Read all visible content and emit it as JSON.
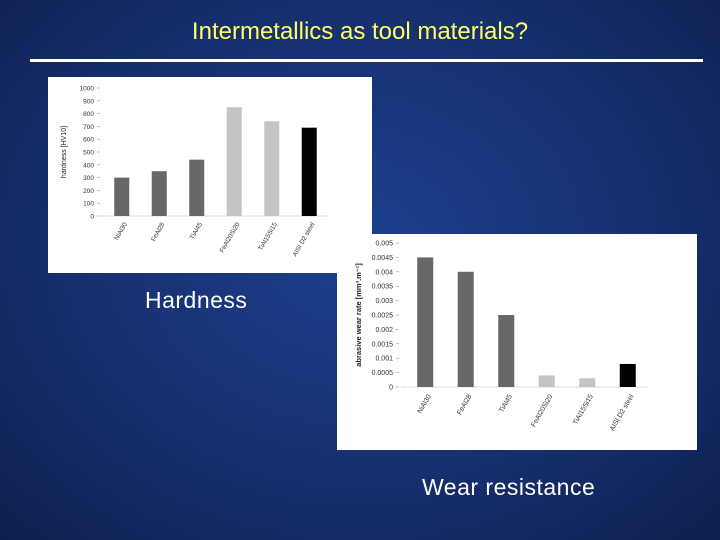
{
  "title": "Intermetallics as tool materials?",
  "captions": {
    "hardness": "Hardness",
    "wear": "Wear resistance"
  },
  "chart_data": [
    {
      "type": "bar",
      "ylabel": "hardness [HV10]",
      "ylim": [
        0,
        1000
      ],
      "yticks": [
        "0",
        "100",
        "200",
        "300",
        "400",
        "500",
        "600",
        "700",
        "800",
        "900",
        "1000"
      ],
      "categories": [
        "NiAl30",
        "FeAl28",
        "TiAl45",
        "FeAl20Si20",
        "TiAl15Si15",
        "AISI D2 steel"
      ],
      "values": [
        300,
        350,
        440,
        850,
        740,
        690
      ],
      "colors": [
        "#676767",
        "#676767",
        "#676767",
        "#c4c4c4",
        "#c4c4c4",
        "#000000"
      ]
    },
    {
      "type": "bar",
      "ylabel": "abrasive wear rate [mm³.m⁻¹]",
      "ylim": [
        0,
        0.005
      ],
      "yticks": [
        "0",
        "0.0005",
        "0.001",
        "0.0015",
        "0.002",
        "0.0025",
        "0.003",
        "0.0035",
        "0.004",
        "0.0045",
        "0.005"
      ],
      "categories": [
        "NiAl30",
        "FeAl28",
        "TiAl45",
        "FeAl20Si20",
        "TiAl15Si15",
        "AISI D2 steel"
      ],
      "values": [
        0.0045,
        0.004,
        0.0025,
        0.0004,
        0.0003,
        0.0008
      ],
      "colors": [
        "#676767",
        "#676767",
        "#676767",
        "#c4c4c4",
        "#c4c4c4",
        "#000000"
      ]
    }
  ]
}
